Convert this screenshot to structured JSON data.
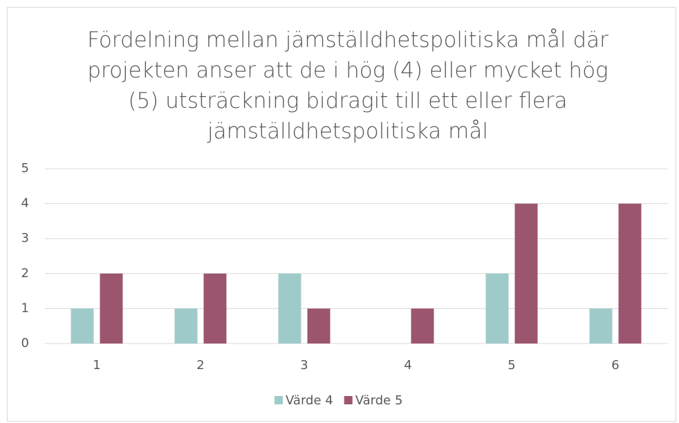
{
  "chart_data": {
    "type": "bar",
    "title": "Fördelning mellan jämställdhetspolitiska mål där projekten anser att de i hög (4) eller mycket hög (5) utsträckning bidragit till ett eller flera jämställdhetspolitiska mål",
    "categories": [
      "1",
      "2",
      "3",
      "4",
      "5",
      "6"
    ],
    "series": [
      {
        "name": "Värde 4",
        "color": "#9ecbc9",
        "values": [
          1,
          1,
          2,
          0,
          2,
          1
        ]
      },
      {
        "name": "Värde 5",
        "color": "#9c556e",
        "values": [
          2,
          2,
          1,
          1,
          4,
          4
        ]
      }
    ],
    "ylim": [
      0,
      5
    ],
    "yticks": [
      0,
      1,
      2,
      3,
      4,
      5
    ],
    "grid": true,
    "legend": "bottom"
  }
}
